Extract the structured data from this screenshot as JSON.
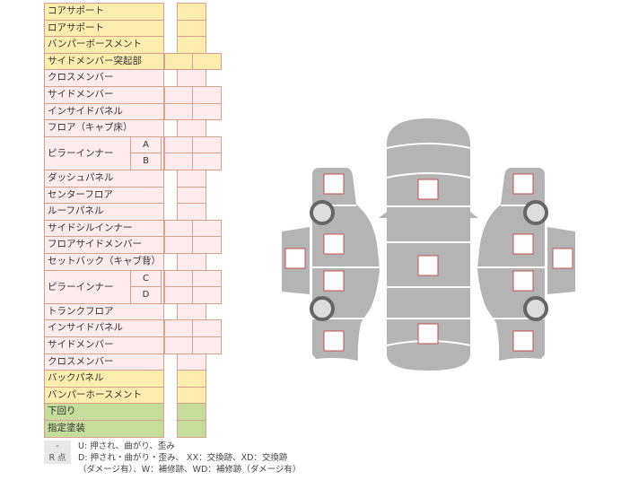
{
  "colors": {
    "yellow": "#fcedae",
    "pink": "#fdebee",
    "green": "#c6dc9a",
    "car_body": "#b4b4b4",
    "marker_border": "#c0504d"
  },
  "rows": [
    {
      "label": "コアサポート",
      "color": "y",
      "cells": 1
    },
    {
      "label": "ロアサポート",
      "color": "y",
      "cells": 1
    },
    {
      "label": "バンパーボースメント",
      "color": "y",
      "cells": 1
    },
    {
      "label": "サイドメンバー突起部",
      "color": "y",
      "cells": 2
    },
    {
      "label": "クロスメンバー",
      "color": "p",
      "cells": 1
    },
    {
      "label": "サイドメンバー",
      "color": "p",
      "cells": 2
    },
    {
      "label": "インサイドパネル",
      "color": "p",
      "cells": 2
    },
    {
      "label": "フロア（キャブ床）",
      "color": "p",
      "cells": 1
    },
    {
      "label": "ピラーインナー",
      "sub": "A",
      "color": "p",
      "cells": 2
    },
    {
      "label": "",
      "sub": "B",
      "color": "p",
      "cells": 2
    },
    {
      "label": "ダッシュパネル",
      "color": "p",
      "cells": 1
    },
    {
      "label": "センターフロア",
      "color": "p",
      "cells": 1
    },
    {
      "label": "ルーフパネル",
      "color": "p",
      "cells": 1
    },
    {
      "label": "サイドシルインナー",
      "color": "p",
      "cells": 2
    },
    {
      "label": "フロアサイドメンバー",
      "color": "p",
      "cells": 2
    },
    {
      "label": "セットバック（キャブ背）",
      "color": "p",
      "cells": 1
    },
    {
      "label": "ピラーインナー",
      "sub": "C",
      "color": "p",
      "cells": 2
    },
    {
      "label": "",
      "sub": "D",
      "color": "p",
      "cells": 2
    },
    {
      "label": "トランクフロア",
      "color": "p",
      "cells": 1
    },
    {
      "label": "インサイドパネル",
      "color": "p",
      "cells": 2
    },
    {
      "label": "サイドメンバー",
      "color": "p",
      "cells": 2
    },
    {
      "label": "クロスメンバー",
      "color": "p",
      "cells": 1
    },
    {
      "label": "バックパネル",
      "color": "y",
      "cells": 1
    },
    {
      "label": "バンパーホースメント",
      "color": "y",
      "cells": 1
    },
    {
      "label": "下回り",
      "color": "g",
      "cells": 1
    },
    {
      "label": "指定塗装",
      "color": "g",
      "cells": 1
    }
  ],
  "legend": [
    {
      "key": "-",
      "text": "U: 押され、曲がり、歪み"
    },
    {
      "key": "R 点",
      "text": "D: 押され・曲がり・歪み、 XX：交換跡、XD：交換跡",
      "text2": "（ダメージ有）、W：補修跡、WD：補修跡（ダメージ有）"
    }
  ]
}
